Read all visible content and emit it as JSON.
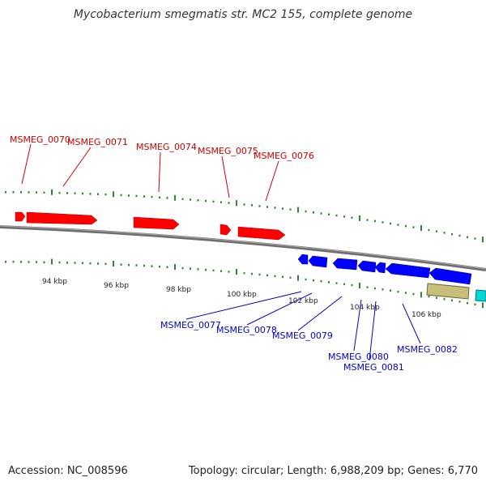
{
  "title": "Mycobacterium smegmatis str. MC2 155, complete genome",
  "footer": {
    "accession": "Accession: NC_008596",
    "stats": "Topology: circular; Length: 6,988,209 bp; Genes: 6,770"
  },
  "colors": {
    "forward_gene": "#ff0000",
    "reverse_gene": "#0000ff",
    "rna_gene": "#c8bf7a",
    "other_gene": "#00d8d8",
    "backbone": "#808080",
    "ticks": "#2a8a2a",
    "forward_label": "#cc0000",
    "reverse_label": "#0000cc"
  },
  "scale_labels": [
    "94 kbp",
    "96 kbp",
    "98 kbp",
    "100 kbp",
    "102 kbp",
    "104 kbp",
    "106 kbp"
  ],
  "forward_genes": [
    "MSMEG_0070",
    "MSMEG_0071",
    "MSMEG_0074",
    "MSMEG_0075",
    "MSMEG_0076"
  ],
  "reverse_genes": [
    "MSMEG_0077",
    "MSMEG_0078",
    "MSMEG_0079",
    "MSMEG_0080",
    "MSMEG_0081",
    "MSMEG_0082"
  ]
}
